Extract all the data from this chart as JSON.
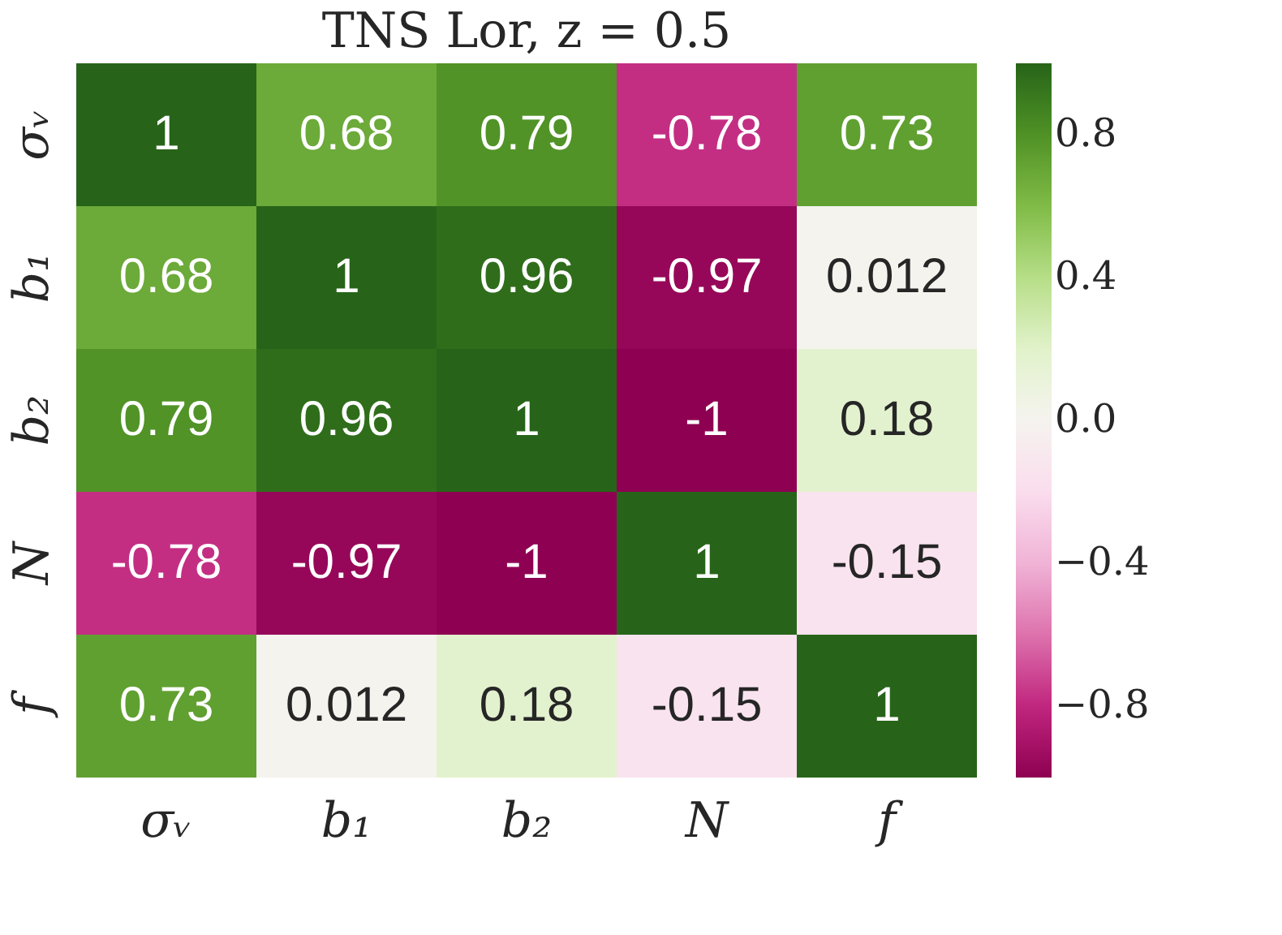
{
  "chart_data": {
    "type": "heatmap",
    "title": "TNS Lor, z = 0.5",
    "categories": [
      "σᵥ",
      "b₁",
      "b₂",
      "N",
      "f"
    ],
    "y_categories": [
      "σᵥ",
      "b₁",
      "b₂",
      "N",
      "f"
    ],
    "cells": [
      [
        1,
        0.68,
        0.79,
        -0.78,
        0.73
      ],
      [
        0.68,
        1,
        0.96,
        -0.97,
        0.012
      ],
      [
        0.79,
        0.96,
        1,
        -1,
        0.18
      ],
      [
        -0.78,
        -0.97,
        -1,
        1,
        -0.15
      ],
      [
        0.73,
        0.012,
        0.18,
        -0.15,
        1
      ]
    ],
    "data_labels": true,
    "clim": [
      -1,
      1
    ],
    "cticks": [
      {
        "value": -0.8,
        "label": "−0.8"
      },
      {
        "value": -0.4,
        "label": "−0.4"
      },
      {
        "value": 0.0,
        "label": "0.0"
      },
      0.4,
      0.8
    ]
  }
}
